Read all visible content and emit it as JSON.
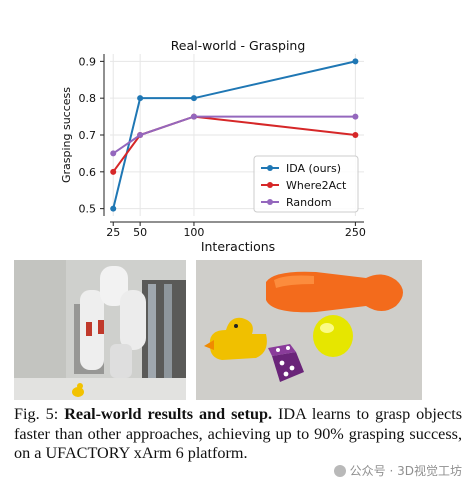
{
  "chart_data": {
    "type": "line",
    "title": "Real-world - Grasping",
    "xlabel": "Interactions",
    "ylabel": "Grasping success",
    "x": [
      25,
      50,
      100,
      250
    ],
    "xticks": [
      "25",
      "50",
      "100",
      "250"
    ],
    "yticks": [
      "0.5",
      "0.6",
      "0.7",
      "0.8",
      "0.9"
    ],
    "xlim": [
      22,
      258
    ],
    "ylim": [
      0.48,
      0.92
    ],
    "grid": true,
    "legend": "lower-right",
    "series": [
      {
        "name": "IDA (ours)",
        "color": "#1f77b4",
        "values": [
          0.5,
          0.8,
          0.8,
          0.9
        ]
      },
      {
        "name": "Where2Act",
        "color": "#d62728",
        "values": [
          0.6,
          0.7,
          0.75,
          0.7
        ]
      },
      {
        "name": "Random",
        "color": "#9467bd",
        "values": [
          0.65,
          0.7,
          0.75,
          0.75
        ]
      }
    ]
  },
  "caption": {
    "label": "Fig. 5: ",
    "bold": "Real-world results and setup.",
    "text": " IDA learns to grasp objects faster than other approaches, achieving up to 90% grasping success, on a UFACTORY xArm 6 platform."
  },
  "watermark": "公众号 · 3D视觉工坊"
}
